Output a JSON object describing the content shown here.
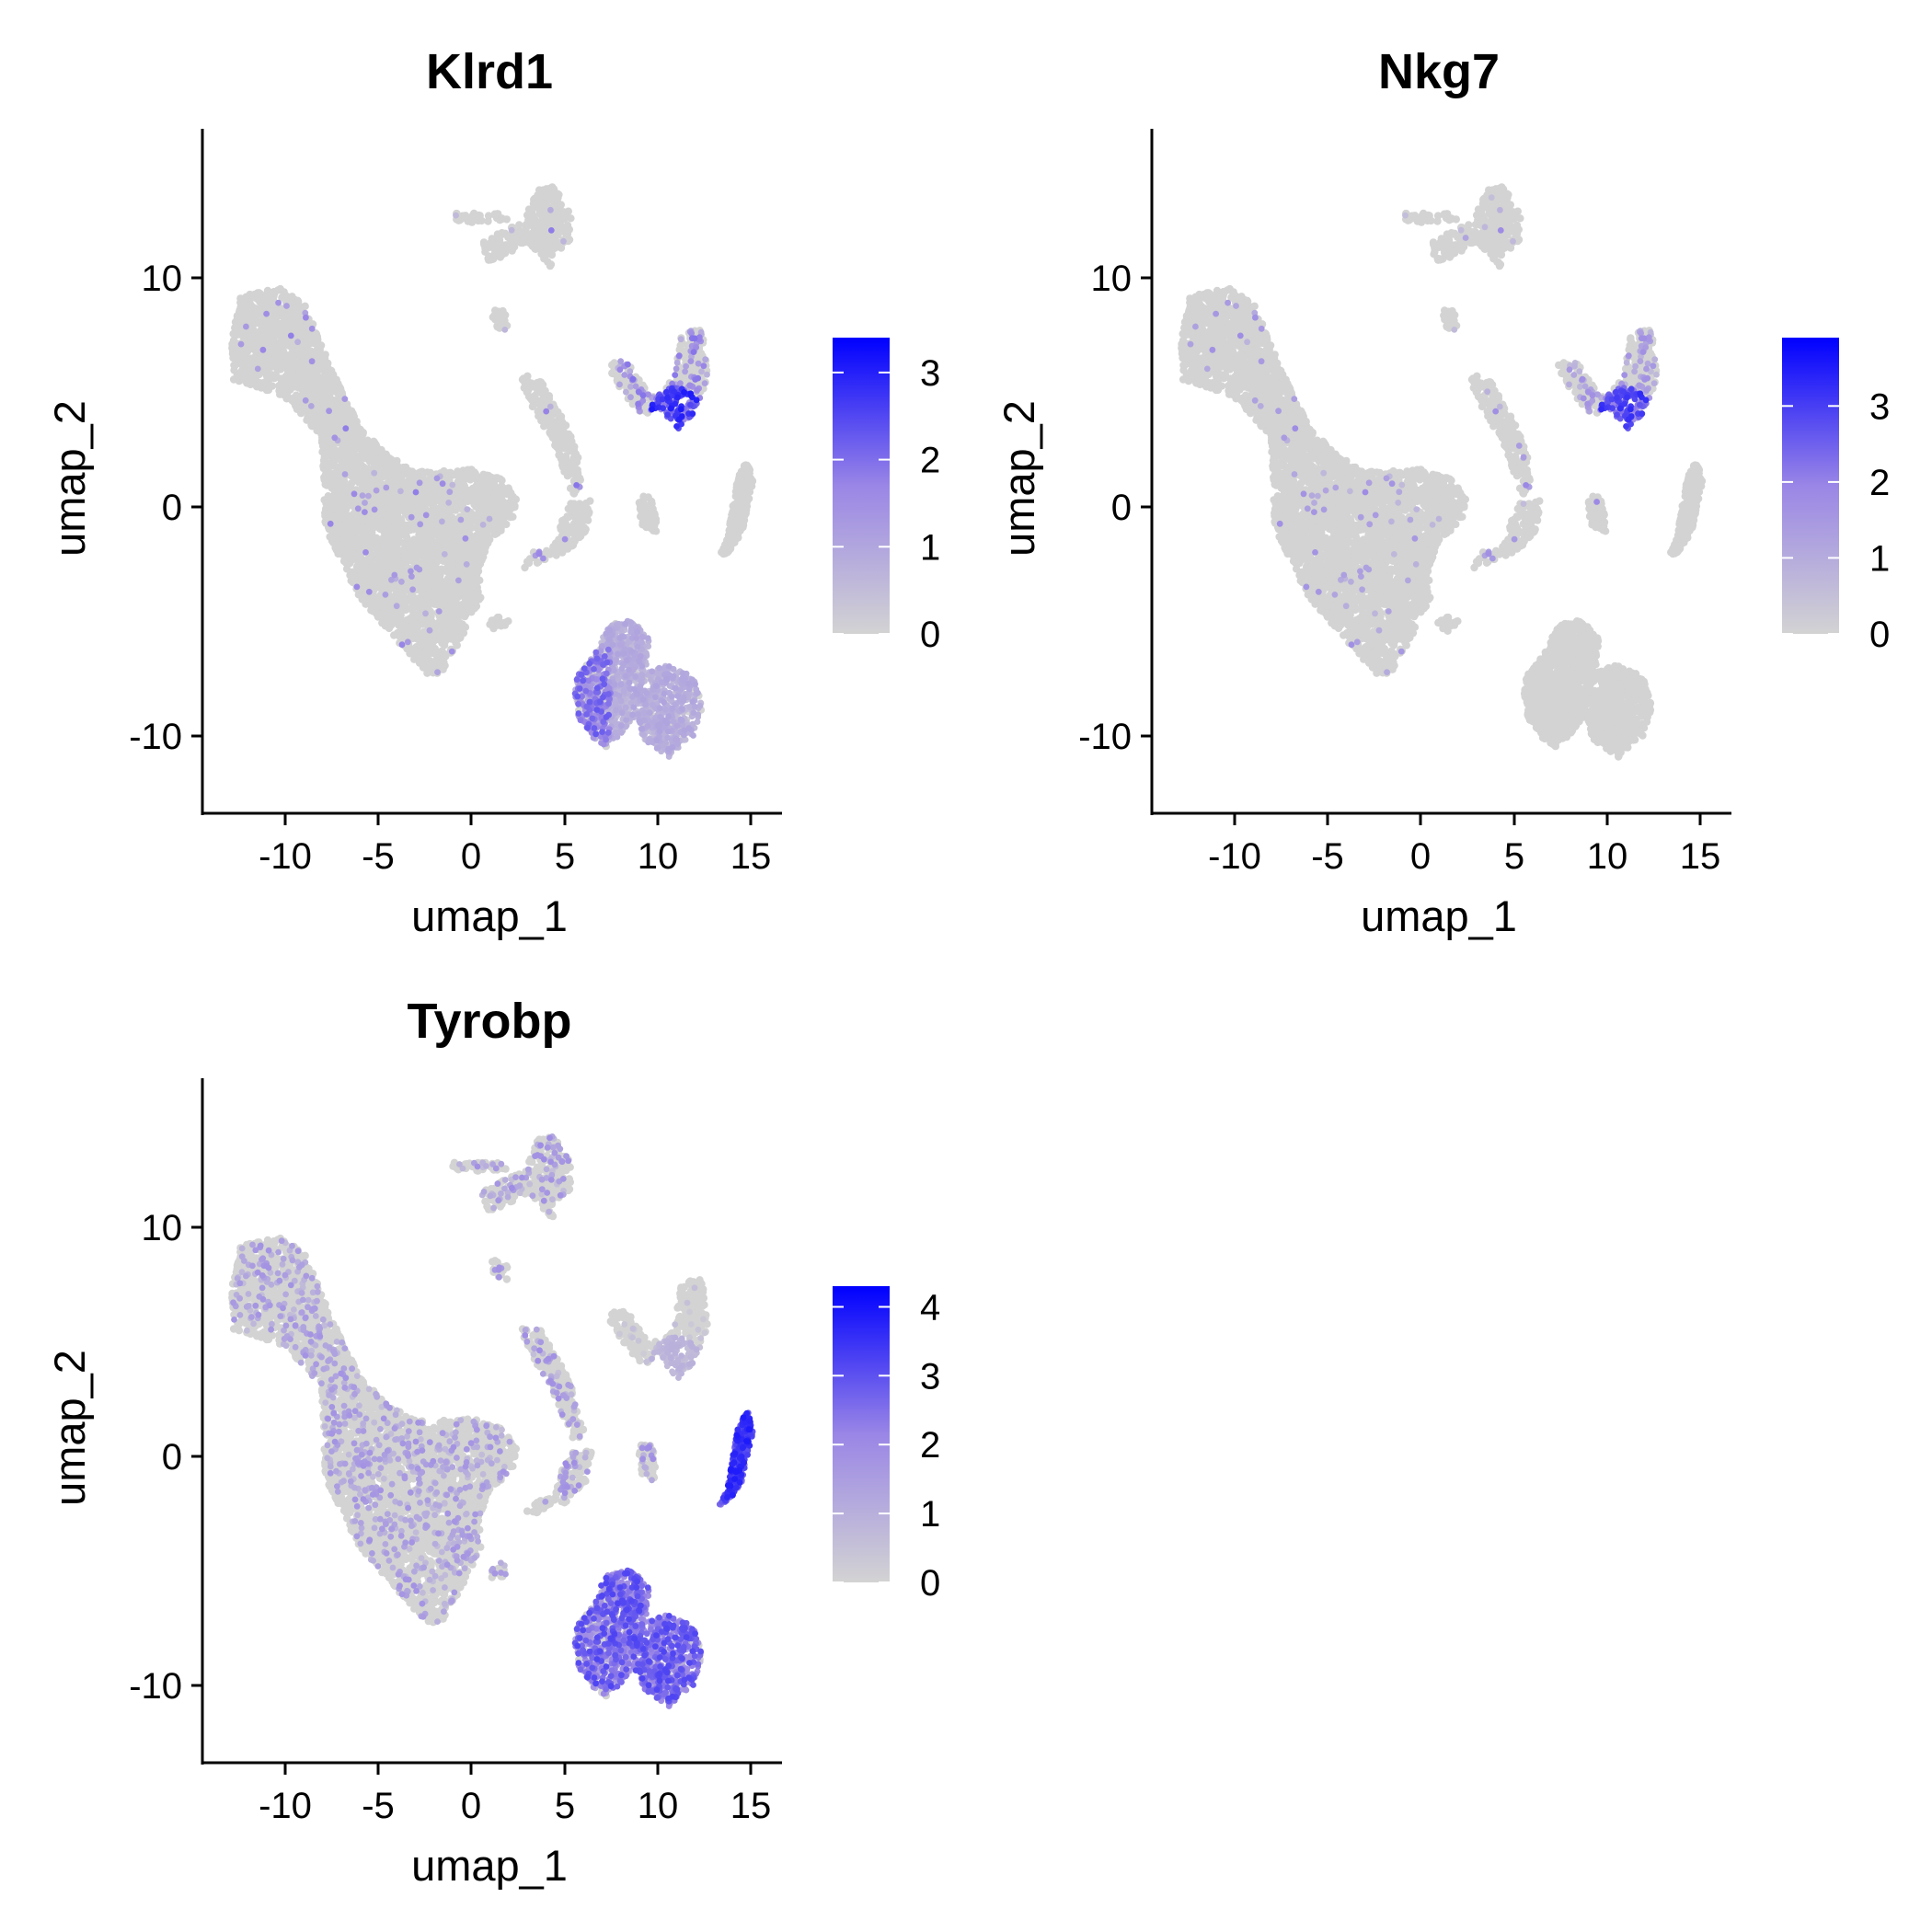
{
  "chart_data": [
    {
      "type": "scatter",
      "title": "Klrd1",
      "xlabel": "umap_1",
      "ylabel": "umap_2",
      "xlim": [
        -14.3,
        16.5
      ],
      "ylim": [
        -13.5,
        16.5
      ],
      "x_ticks": [
        -10,
        -5,
        0,
        5,
        10,
        15
      ],
      "x_tick_labels": [
        "-10",
        "-5",
        "0",
        "5",
        "10",
        "15"
      ],
      "y_ticks": [
        -10,
        0,
        10
      ],
      "y_tick_labels": [
        "-10",
        "0",
        "10"
      ],
      "grid": false,
      "colorbar": {
        "min": 0,
        "max": 3.4,
        "ticks": [
          0,
          1,
          2,
          3
        ],
        "tick_labels": [
          "0",
          "1",
          "2",
          "3"
        ],
        "low_color": "#d3d3d3",
        "high_color": "#0000ff"
      },
      "expression": {
        "nk": 0.9,
        "nk_core": 2.0,
        "nk_edge": 0.5,
        "mac": 0.05,
        "cd8": 0.85,
        "cd8_hot": 2.8,
        "tcell": 0.01,
        "misc": 0.02
      }
    },
    {
      "type": "scatter",
      "title": "Nkg7",
      "xlabel": "umap_1",
      "ylabel": "umap_2",
      "xlim": [
        -14.3,
        16.5
      ],
      "ylim": [
        -13.5,
        16.5
      ],
      "x_ticks": [
        -10,
        -5,
        0,
        5,
        10,
        15
      ],
      "x_tick_labels": [
        "-10",
        "-5",
        "0",
        "5",
        "10",
        "15"
      ],
      "y_ticks": [
        -10,
        0,
        10
      ],
      "y_tick_labels": [
        "-10",
        "0",
        "10"
      ],
      "grid": false,
      "colorbar": {
        "min": 0,
        "max": 3.9,
        "ticks": [
          0,
          1,
          2,
          3
        ],
        "tick_labels": [
          "0",
          "1",
          "2",
          "3"
        ],
        "low_color": "#d3d3d3",
        "high_color": "#0000ff"
      },
      "expression": {
        "nk": 0.05,
        "nk_core": 0.05,
        "nk_edge": 0.05,
        "mac": 0.02,
        "cd8": 0.75,
        "cd8_hot": 3.0,
        "tcell": 0.01,
        "misc": 0.04
      }
    },
    {
      "type": "scatter",
      "title": "Tyrobp",
      "xlabel": "umap_1",
      "ylabel": "umap_2",
      "xlim": [
        -14.3,
        16.5
      ],
      "ylim": [
        -13.5,
        16.5
      ],
      "x_ticks": [
        -10,
        -5,
        0,
        5,
        10,
        15
      ],
      "x_tick_labels": [
        "-10",
        "-5",
        "0",
        "5",
        "10",
        "15"
      ],
      "y_ticks": [
        -10,
        0,
        10
      ],
      "y_tick_labels": [
        "-10",
        "0",
        "10"
      ],
      "grid": false,
      "colorbar": {
        "min": 0,
        "max": 4.3,
        "ticks": [
          0,
          1,
          2,
          3,
          4
        ],
        "tick_labels": [
          "0",
          "1",
          "2",
          "3",
          "4"
        ],
        "low_color": "#d3d3d3",
        "high_color": "#0000ff"
      },
      "expression": {
        "nk": 2.8,
        "nk_core": 2.8,
        "nk_edge": 1.2,
        "mac": 3.4,
        "cd8": 0.25,
        "cd8_hot": 0.9,
        "tcell": 0.08,
        "misc": 0.25
      }
    }
  ]
}
